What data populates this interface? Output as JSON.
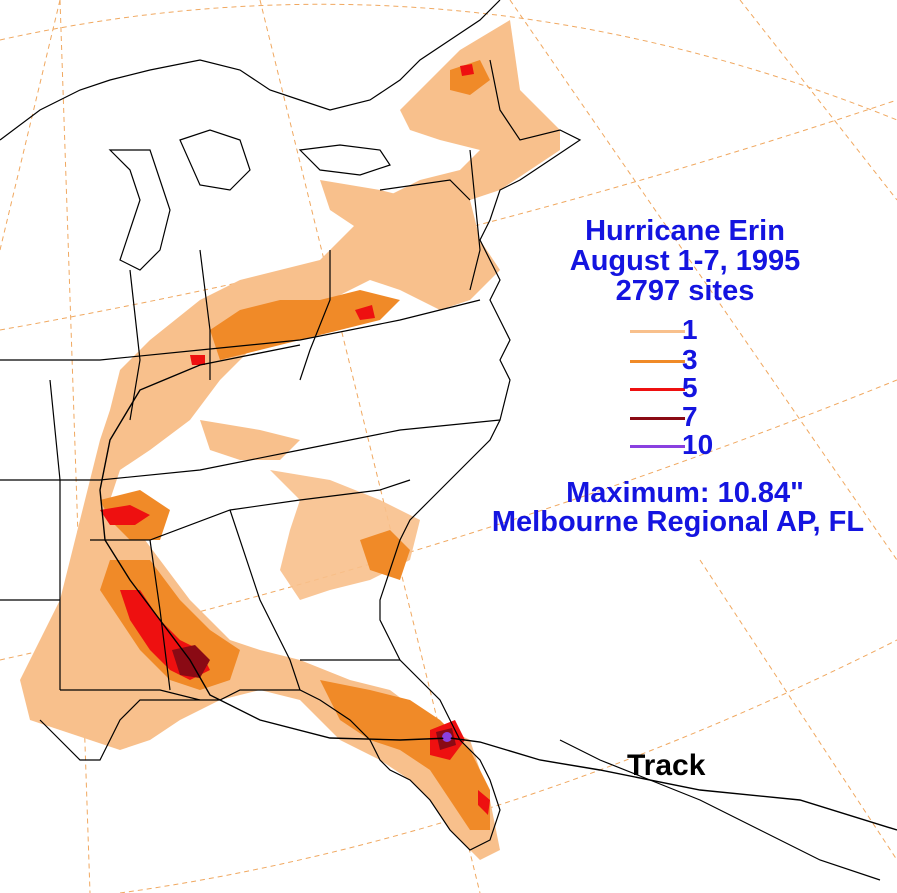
{
  "title": {
    "line1": "Hurricane Erin",
    "line2": "August 1-7, 1995",
    "line3": "2797 sites"
  },
  "legend": {
    "items": [
      {
        "label": "1",
        "color": "#f8c08c"
      },
      {
        "label": "3",
        "color": "#f08a28"
      },
      {
        "label": "5",
        "color": "#ee1010"
      },
      {
        "label": "7",
        "color": "#8a0a14"
      },
      {
        "label": "10",
        "color": "#8a40e0"
      }
    ]
  },
  "maximum": {
    "line1": "Maximum:  10.84\"",
    "line2": "Melbourne Regional AP, FL"
  },
  "track": {
    "label": "Track"
  },
  "colors": {
    "text": "#1414e0",
    "graticule": "#f0a860",
    "borders": "#000000",
    "rain_1": "#f8c08c",
    "rain_3": "#f08a28",
    "rain_5": "#ee1010",
    "rain_7": "#8a0a14",
    "rain_10": "#8a40e0"
  }
}
